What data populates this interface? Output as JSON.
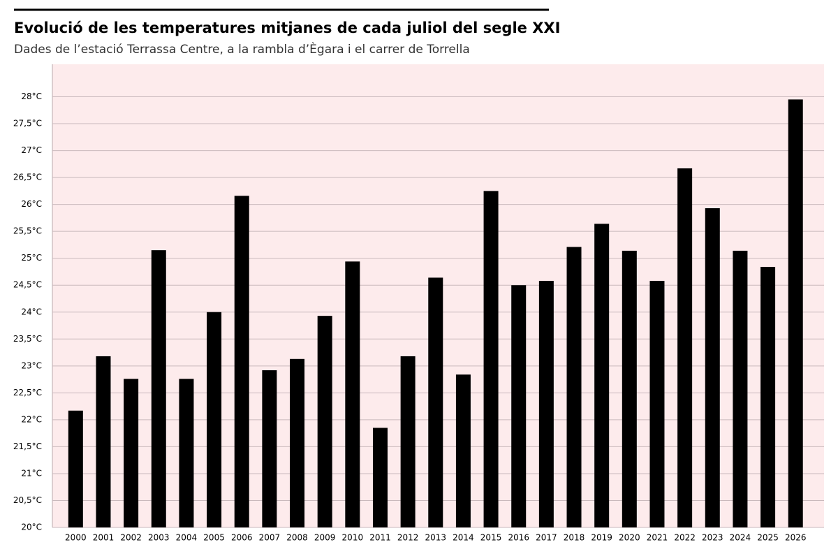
{
  "chart_data": {
    "type": "bar",
    "title": "Evolució de les temperatures mitjanes de cada juliol del segle XXI",
    "subtitle": "Dades de l’estació Terrassa Centre, a la rambla d’Ègara i el carrer de Torrella",
    "categories": [
      "2000",
      "2001",
      "2002",
      "2003",
      "2004",
      "2005",
      "2006",
      "2007",
      "2008",
      "2009",
      "2010",
      "2011",
      "2012",
      "2013",
      "2014",
      "2015",
      "2016",
      "2017",
      "2018",
      "2019",
      "2020",
      "2021",
      "2022",
      "2023",
      "2024",
      "2025",
      "2026"
    ],
    "values": [
      22.17,
      23.18,
      22.76,
      25.15,
      22.76,
      24.0,
      26.16,
      22.92,
      23.13,
      23.93,
      24.94,
      21.85,
      23.18,
      24.64,
      22.84,
      26.25,
      24.5,
      24.58,
      25.21,
      25.64,
      25.14,
      24.58,
      26.67,
      25.93,
      25.14,
      24.84,
      27.95
    ],
    "color": "#000000",
    "background": "#fdebec",
    "ylim": [
      20,
      28.5
    ],
    "yticks": [
      {
        "value": 20,
        "label": "20°C"
      },
      {
        "value": 20.5,
        "label": "20,5°C"
      },
      {
        "value": 21,
        "label": "21°C"
      },
      {
        "value": 21.5,
        "label": "21,5°C"
      },
      {
        "value": 22,
        "label": "22°C"
      },
      {
        "value": 22.5,
        "label": "22,5°C"
      },
      {
        "value": 23,
        "label": "23°C"
      },
      {
        "value": 23.5,
        "label": "23,5°C"
      },
      {
        "value": 24,
        "label": "24°C"
      },
      {
        "value": 24.5,
        "label": "24,5°C"
      },
      {
        "value": 25,
        "label": "25°C"
      },
      {
        "value": 25.5,
        "label": "25,5°C"
      },
      {
        "value": 26,
        "label": "26°C"
      },
      {
        "value": 26.5,
        "label": "26,5°C"
      },
      {
        "value": 27,
        "label": "27°C"
      },
      {
        "value": 27.5,
        "label": "27,5°C"
      },
      {
        "value": 28,
        "label": "28°C"
      }
    ],
    "grid": true
  }
}
